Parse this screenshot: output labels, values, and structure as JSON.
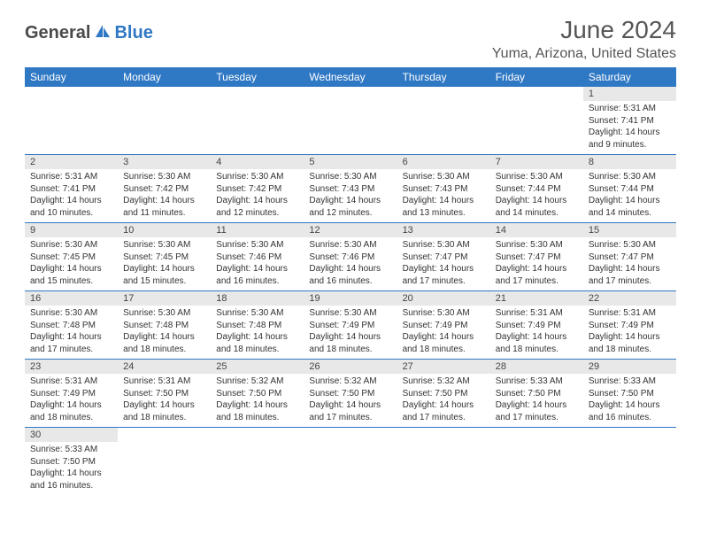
{
  "logo": {
    "text1": "General",
    "text2": "Blue"
  },
  "title": "June 2024",
  "location": "Yuma, Arizona, United States",
  "colors": {
    "header_bg": "#2f78c4",
    "header_text": "#ffffff",
    "daynum_bg": "#e8e8e8",
    "row_border": "#2f78c4",
    "title_color": "#555555",
    "body_text": "#333333"
  },
  "typography": {
    "title_fontsize": 28,
    "location_fontsize": 16,
    "dayhead_fontsize": 12,
    "daynum_fontsize": 11,
    "cell_fontsize": 10
  },
  "day_names": [
    "Sunday",
    "Monday",
    "Tuesday",
    "Wednesday",
    "Thursday",
    "Friday",
    "Saturday"
  ],
  "weeks": [
    [
      null,
      null,
      null,
      null,
      null,
      null,
      {
        "n": "1",
        "sr": "Sunrise: 5:31 AM",
        "ss": "Sunset: 7:41 PM",
        "d1": "Daylight: 14 hours",
        "d2": "and 9 minutes."
      }
    ],
    [
      {
        "n": "2",
        "sr": "Sunrise: 5:31 AM",
        "ss": "Sunset: 7:41 PM",
        "d1": "Daylight: 14 hours",
        "d2": "and 10 minutes."
      },
      {
        "n": "3",
        "sr": "Sunrise: 5:30 AM",
        "ss": "Sunset: 7:42 PM",
        "d1": "Daylight: 14 hours",
        "d2": "and 11 minutes."
      },
      {
        "n": "4",
        "sr": "Sunrise: 5:30 AM",
        "ss": "Sunset: 7:42 PM",
        "d1": "Daylight: 14 hours",
        "d2": "and 12 minutes."
      },
      {
        "n": "5",
        "sr": "Sunrise: 5:30 AM",
        "ss": "Sunset: 7:43 PM",
        "d1": "Daylight: 14 hours",
        "d2": "and 12 minutes."
      },
      {
        "n": "6",
        "sr": "Sunrise: 5:30 AM",
        "ss": "Sunset: 7:43 PM",
        "d1": "Daylight: 14 hours",
        "d2": "and 13 minutes."
      },
      {
        "n": "7",
        "sr": "Sunrise: 5:30 AM",
        "ss": "Sunset: 7:44 PM",
        "d1": "Daylight: 14 hours",
        "d2": "and 14 minutes."
      },
      {
        "n": "8",
        "sr": "Sunrise: 5:30 AM",
        "ss": "Sunset: 7:44 PM",
        "d1": "Daylight: 14 hours",
        "d2": "and 14 minutes."
      }
    ],
    [
      {
        "n": "9",
        "sr": "Sunrise: 5:30 AM",
        "ss": "Sunset: 7:45 PM",
        "d1": "Daylight: 14 hours",
        "d2": "and 15 minutes."
      },
      {
        "n": "10",
        "sr": "Sunrise: 5:30 AM",
        "ss": "Sunset: 7:45 PM",
        "d1": "Daylight: 14 hours",
        "d2": "and 15 minutes."
      },
      {
        "n": "11",
        "sr": "Sunrise: 5:30 AM",
        "ss": "Sunset: 7:46 PM",
        "d1": "Daylight: 14 hours",
        "d2": "and 16 minutes."
      },
      {
        "n": "12",
        "sr": "Sunrise: 5:30 AM",
        "ss": "Sunset: 7:46 PM",
        "d1": "Daylight: 14 hours",
        "d2": "and 16 minutes."
      },
      {
        "n": "13",
        "sr": "Sunrise: 5:30 AM",
        "ss": "Sunset: 7:47 PM",
        "d1": "Daylight: 14 hours",
        "d2": "and 17 minutes."
      },
      {
        "n": "14",
        "sr": "Sunrise: 5:30 AM",
        "ss": "Sunset: 7:47 PM",
        "d1": "Daylight: 14 hours",
        "d2": "and 17 minutes."
      },
      {
        "n": "15",
        "sr": "Sunrise: 5:30 AM",
        "ss": "Sunset: 7:47 PM",
        "d1": "Daylight: 14 hours",
        "d2": "and 17 minutes."
      }
    ],
    [
      {
        "n": "16",
        "sr": "Sunrise: 5:30 AM",
        "ss": "Sunset: 7:48 PM",
        "d1": "Daylight: 14 hours",
        "d2": "and 17 minutes."
      },
      {
        "n": "17",
        "sr": "Sunrise: 5:30 AM",
        "ss": "Sunset: 7:48 PM",
        "d1": "Daylight: 14 hours",
        "d2": "and 18 minutes."
      },
      {
        "n": "18",
        "sr": "Sunrise: 5:30 AM",
        "ss": "Sunset: 7:48 PM",
        "d1": "Daylight: 14 hours",
        "d2": "and 18 minutes."
      },
      {
        "n": "19",
        "sr": "Sunrise: 5:30 AM",
        "ss": "Sunset: 7:49 PM",
        "d1": "Daylight: 14 hours",
        "d2": "and 18 minutes."
      },
      {
        "n": "20",
        "sr": "Sunrise: 5:30 AM",
        "ss": "Sunset: 7:49 PM",
        "d1": "Daylight: 14 hours",
        "d2": "and 18 minutes."
      },
      {
        "n": "21",
        "sr": "Sunrise: 5:31 AM",
        "ss": "Sunset: 7:49 PM",
        "d1": "Daylight: 14 hours",
        "d2": "and 18 minutes."
      },
      {
        "n": "22",
        "sr": "Sunrise: 5:31 AM",
        "ss": "Sunset: 7:49 PM",
        "d1": "Daylight: 14 hours",
        "d2": "and 18 minutes."
      }
    ],
    [
      {
        "n": "23",
        "sr": "Sunrise: 5:31 AM",
        "ss": "Sunset: 7:49 PM",
        "d1": "Daylight: 14 hours",
        "d2": "and 18 minutes."
      },
      {
        "n": "24",
        "sr": "Sunrise: 5:31 AM",
        "ss": "Sunset: 7:50 PM",
        "d1": "Daylight: 14 hours",
        "d2": "and 18 minutes."
      },
      {
        "n": "25",
        "sr": "Sunrise: 5:32 AM",
        "ss": "Sunset: 7:50 PM",
        "d1": "Daylight: 14 hours",
        "d2": "and 18 minutes."
      },
      {
        "n": "26",
        "sr": "Sunrise: 5:32 AM",
        "ss": "Sunset: 7:50 PM",
        "d1": "Daylight: 14 hours",
        "d2": "and 17 minutes."
      },
      {
        "n": "27",
        "sr": "Sunrise: 5:32 AM",
        "ss": "Sunset: 7:50 PM",
        "d1": "Daylight: 14 hours",
        "d2": "and 17 minutes."
      },
      {
        "n": "28",
        "sr": "Sunrise: 5:33 AM",
        "ss": "Sunset: 7:50 PM",
        "d1": "Daylight: 14 hours",
        "d2": "and 17 minutes."
      },
      {
        "n": "29",
        "sr": "Sunrise: 5:33 AM",
        "ss": "Sunset: 7:50 PM",
        "d1": "Daylight: 14 hours",
        "d2": "and 16 minutes."
      }
    ],
    [
      {
        "n": "30",
        "sr": "Sunrise: 5:33 AM",
        "ss": "Sunset: 7:50 PM",
        "d1": "Daylight: 14 hours",
        "d2": "and 16 minutes."
      },
      null,
      null,
      null,
      null,
      null,
      null
    ]
  ]
}
